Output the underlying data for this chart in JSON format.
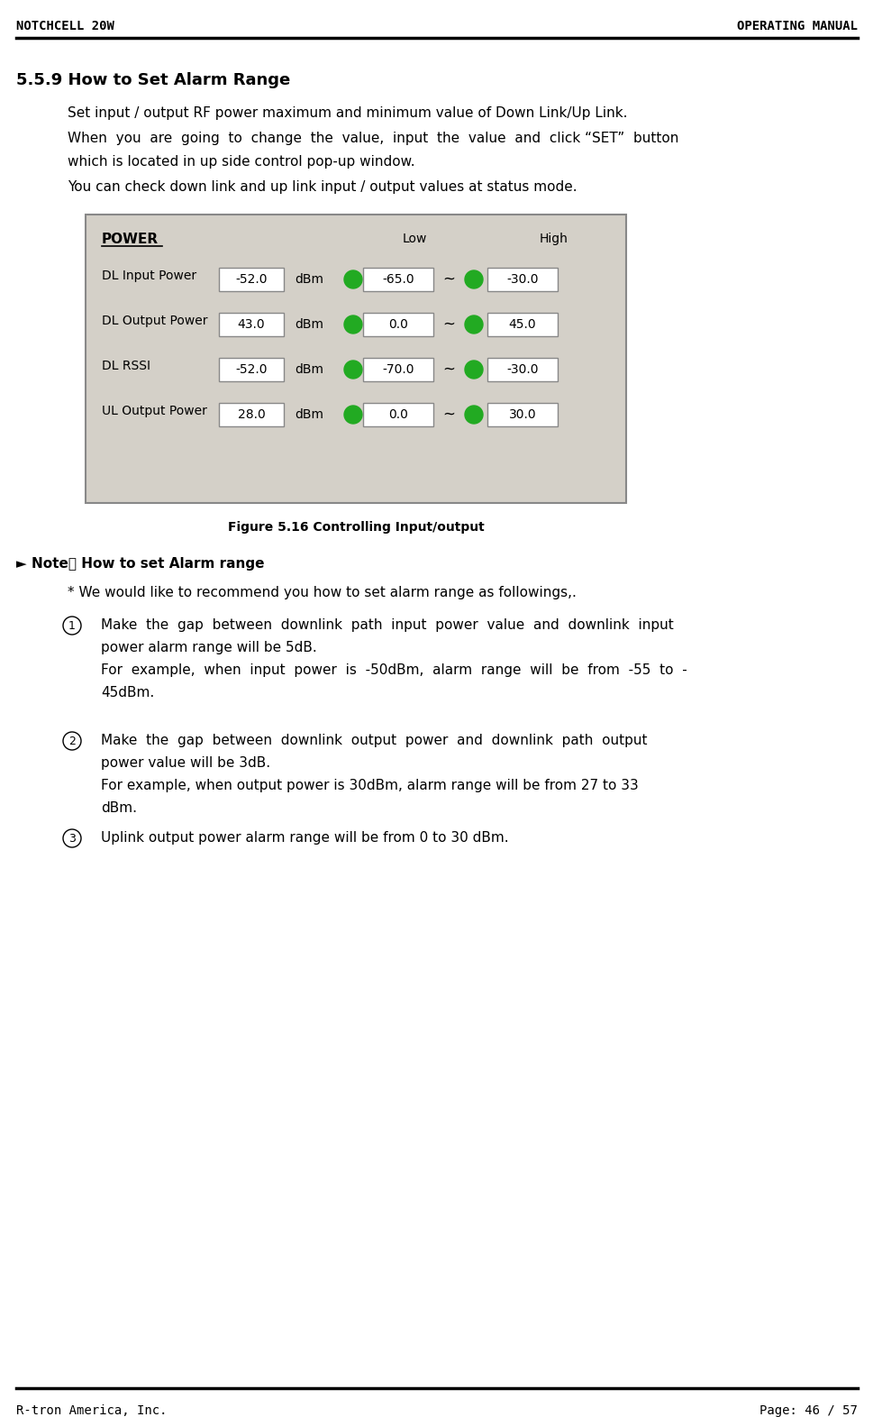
{
  "header_left": "NOTCHCELL 20W",
  "header_right": "OPERATING MANUAL",
  "footer_left": "R-tron America, Inc.",
  "footer_right": "Page: 46 / 57",
  "section_title": "5.5.9 How to Set Alarm Range",
  "para1": "Set input / output RF power maximum and minimum value of Down Link/Up Link.",
  "para2_line1": "When  you  are  going  to  change  the  value,  input  the  value  and  click “SET”  button",
  "para2_line2": "which is located in up side control pop-up window.",
  "para3": "You can check down link and up link input / output values at status mode.",
  "figure_caption": "Figure 5.16 Controlling Input/output",
  "note_header": "► Note： How to set Alarm range",
  "note_intro": "* We would like to recommend you how to set alarm range as followings,.",
  "item1_lines": [
    "Make  the  gap  between  downlink  path  input  power  value  and  downlink  input",
    "power alarm range will be 5dB.",
    "For  example,  when  input  power  is  -50dBm,  alarm  range  will  be  from  -55  to  -",
    "45dBm."
  ],
  "item2_lines": [
    "Make  the  gap  between  downlink  output  power  and  downlink  path  output",
    "power value will be 3dB.",
    "For example, when output power is 30dBm, alarm range will be from 27 to 33",
    "dBm."
  ],
  "item3": "Uplink output power alarm range will be from 0 to 30 dBm.",
  "table": {
    "title": "POWER",
    "col_low": "Low",
    "col_high": "High",
    "rows": [
      {
        "label": "DL Input Power",
        "value": "-52.0",
        "unit": "dBm",
        "low": "-65.0",
        "high": "-30.0"
      },
      {
        "label": "DL Output Power",
        "value": "43.0",
        "unit": "dBm",
        "low": "0.0",
        "high": "45.0"
      },
      {
        "label": "DL RSSI",
        "value": "-52.0",
        "unit": "dBm",
        "low": "-70.0",
        "high": "-30.0"
      },
      {
        "label": "UL Output Power",
        "value": "28.0",
        "unit": "dBm",
        "low": "0.0",
        "high": "30.0"
      }
    ],
    "bg_color": "#d4d0c8",
    "box_color": "#ffffff",
    "border_color": "#888888",
    "green_color": "#22aa22",
    "tilde": "~"
  },
  "page_bg": "#ffffff",
  "header_line_color": "#000000",
  "footer_line_color": "#000000",
  "text_color": "#000000",
  "font_size_header": 10,
  "font_size_section": 13,
  "font_size_body": 11,
  "font_size_note": 11,
  "font_size_table": 10,
  "font_size_footer": 10
}
